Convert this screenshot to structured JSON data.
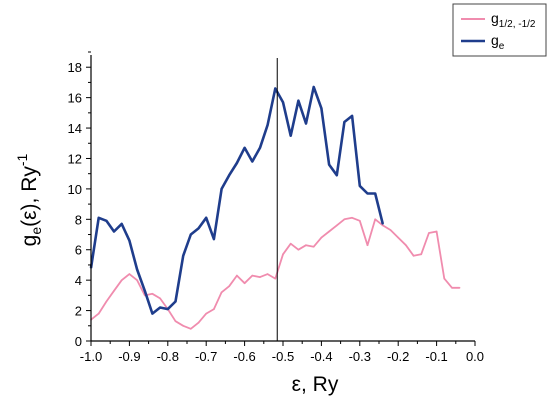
{
  "chart_data": {
    "type": "line",
    "title": "",
    "xlabel": "ε, Ry",
    "ylabel": {
      "main": "g",
      "sub": "e",
      "mid": "(ε), Ry",
      "sup": "-1"
    },
    "xlim": [
      -1.0,
      0.0
    ],
    "ylim": [
      0,
      19
    ],
    "x_ticks": [
      "-1.0",
      "-0.9",
      "-0.8",
      "-0.7",
      "-0.6",
      "-0.5",
      "-0.4",
      "-0.3",
      "-0.2",
      "-0.1",
      "0.0"
    ],
    "y_ticks": [
      "0",
      "2",
      "4",
      "6",
      "8",
      "10",
      "12",
      "14",
      "16",
      "18"
    ],
    "vertical_line_x": -0.515,
    "grid": false,
    "legend_position": "top-right",
    "series": [
      {
        "name": "g_{1/2, -1/2}",
        "legend_main": "g",
        "legend_sub": "1/2, -1/2",
        "color": "#f08cae",
        "points": [
          [
            -1.0,
            1.4
          ],
          [
            -0.98,
            1.8
          ],
          [
            -0.96,
            2.6
          ],
          [
            -0.94,
            3.3
          ],
          [
            -0.92,
            4.0
          ],
          [
            -0.9,
            4.4
          ],
          [
            -0.88,
            4.0
          ],
          [
            -0.86,
            3.0
          ],
          [
            -0.84,
            3.1
          ],
          [
            -0.82,
            2.8
          ],
          [
            -0.8,
            2.1
          ],
          [
            -0.78,
            1.3
          ],
          [
            -0.76,
            1.0
          ],
          [
            -0.74,
            0.8
          ],
          [
            -0.72,
            1.2
          ],
          [
            -0.7,
            1.8
          ],
          [
            -0.68,
            2.1
          ],
          [
            -0.66,
            3.2
          ],
          [
            -0.64,
            3.6
          ],
          [
            -0.62,
            4.3
          ],
          [
            -0.6,
            3.8
          ],
          [
            -0.58,
            4.3
          ],
          [
            -0.56,
            4.2
          ],
          [
            -0.54,
            4.4
          ],
          [
            -0.52,
            4.1
          ],
          [
            -0.5,
            5.7
          ],
          [
            -0.48,
            6.4
          ],
          [
            -0.46,
            6.0
          ],
          [
            -0.44,
            6.3
          ],
          [
            -0.42,
            6.2
          ],
          [
            -0.4,
            6.8
          ],
          [
            -0.38,
            7.2
          ],
          [
            -0.36,
            7.6
          ],
          [
            -0.34,
            8.0
          ],
          [
            -0.32,
            8.1
          ],
          [
            -0.3,
            7.9
          ],
          [
            -0.28,
            6.3
          ],
          [
            -0.26,
            8.0
          ],
          [
            -0.24,
            7.6
          ],
          [
            -0.22,
            7.3
          ],
          [
            -0.2,
            6.8
          ],
          [
            -0.18,
            6.3
          ],
          [
            -0.16,
            5.6
          ],
          [
            -0.14,
            5.7
          ],
          [
            -0.12,
            7.1
          ],
          [
            -0.1,
            7.2
          ],
          [
            -0.08,
            4.1
          ],
          [
            -0.06,
            3.5
          ],
          [
            -0.04,
            3.5
          ]
        ]
      },
      {
        "name": "g_e",
        "legend_main": "g",
        "legend_sub": "e",
        "color": "#1f3d8c",
        "points": [
          [
            -1.0,
            4.8
          ],
          [
            -0.98,
            8.1
          ],
          [
            -0.96,
            7.9
          ],
          [
            -0.94,
            7.2
          ],
          [
            -0.92,
            7.7
          ],
          [
            -0.9,
            6.6
          ],
          [
            -0.88,
            4.7
          ],
          [
            -0.86,
            3.3
          ],
          [
            -0.84,
            1.8
          ],
          [
            -0.82,
            2.2
          ],
          [
            -0.8,
            2.1
          ],
          [
            -0.78,
            2.6
          ],
          [
            -0.76,
            5.6
          ],
          [
            -0.74,
            7.0
          ],
          [
            -0.72,
            7.4
          ],
          [
            -0.7,
            8.1
          ],
          [
            -0.68,
            6.7
          ],
          [
            -0.66,
            10.0
          ],
          [
            -0.64,
            10.9
          ],
          [
            -0.62,
            11.7
          ],
          [
            -0.6,
            12.7
          ],
          [
            -0.58,
            11.8
          ],
          [
            -0.56,
            12.7
          ],
          [
            -0.54,
            14.2
          ],
          [
            -0.52,
            16.6
          ],
          [
            -0.5,
            15.7
          ],
          [
            -0.48,
            13.5
          ],
          [
            -0.46,
            15.8
          ],
          [
            -0.44,
            14.3
          ],
          [
            -0.42,
            16.7
          ],
          [
            -0.4,
            15.3
          ],
          [
            -0.38,
            11.6
          ],
          [
            -0.36,
            10.9
          ],
          [
            -0.34,
            14.4
          ],
          [
            -0.32,
            14.8
          ],
          [
            -0.3,
            10.2
          ],
          [
            -0.28,
            9.7
          ],
          [
            -0.26,
            9.7
          ],
          [
            -0.24,
            7.7
          ]
        ]
      }
    ]
  }
}
